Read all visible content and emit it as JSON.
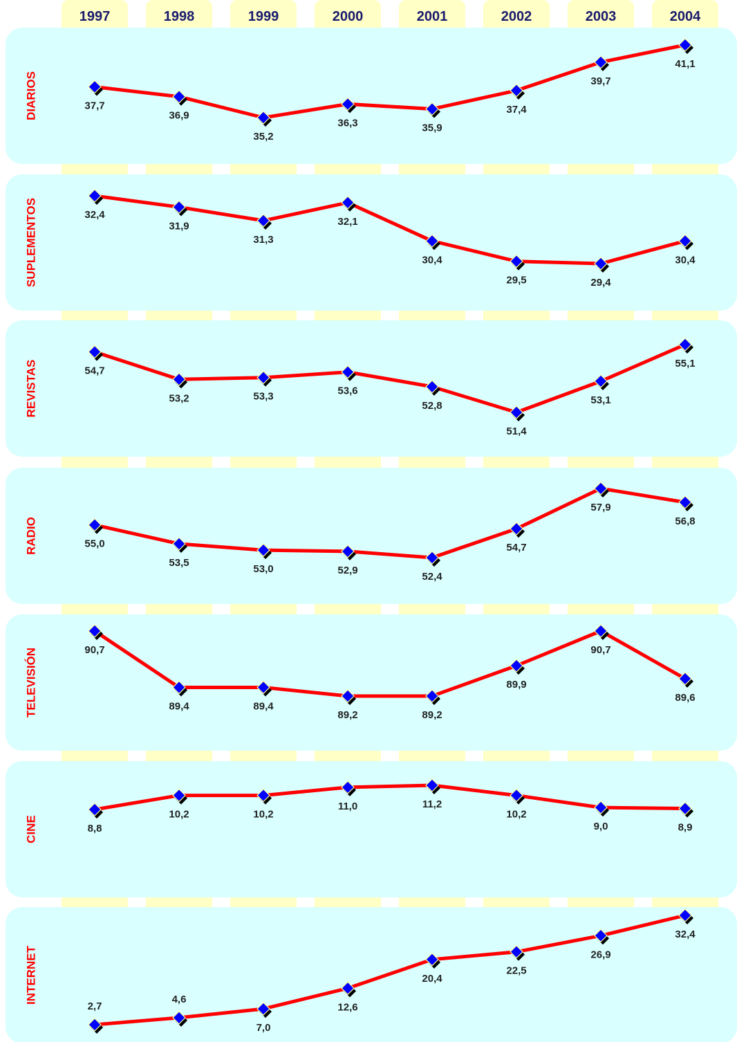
{
  "chart_data": {
    "type": "line",
    "years": [
      "1997",
      "1998",
      "1999",
      "2000",
      "2001",
      "2002",
      "2003",
      "2004"
    ],
    "colors": {
      "panel": "#d9ffff",
      "year_band": "#ffffc6",
      "line": "#ff0000",
      "marker": "#0000ff",
      "label": "#ff0000",
      "year_text": "#1a1a6e"
    },
    "panels": [
      {
        "name": "DIARIOS",
        "values": [
          37.7,
          36.9,
          35.2,
          36.3,
          35.9,
          37.4,
          39.7,
          41.1
        ],
        "labels": [
          "37,7",
          "36,9",
          "35,2",
          "36,3",
          "35,9",
          "37,4",
          "39,7",
          "41,1"
        ]
      },
      {
        "name": "SUPLEMENTOS",
        "values": [
          32.4,
          31.9,
          31.3,
          32.1,
          30.4,
          29.5,
          29.4,
          30.4
        ],
        "labels": [
          "32,4",
          "31,9",
          "31,3",
          "32,1",
          "30,4",
          "29,5",
          "29,4",
          "30,4"
        ]
      },
      {
        "name": "REVISTAS",
        "values": [
          54.7,
          53.2,
          53.3,
          53.6,
          52.8,
          51.4,
          53.1,
          55.1
        ],
        "labels": [
          "54,7",
          "53,2",
          "53,3",
          "53,6",
          "52,8",
          "51,4",
          "53,1",
          "55,1"
        ]
      },
      {
        "name": "RADIO",
        "values": [
          55.0,
          53.5,
          53.0,
          52.9,
          52.4,
          54.7,
          57.9,
          56.8
        ],
        "labels": [
          "55,0",
          "53,5",
          "53,0",
          "52,9",
          "52,4",
          "54,7",
          "57,9",
          "56,8"
        ]
      },
      {
        "name": "TELEVISIÓN",
        "values": [
          90.7,
          89.4,
          89.4,
          89.2,
          89.2,
          89.9,
          90.7,
          89.6
        ],
        "labels": [
          "90,7",
          "89,4",
          "89,4",
          "89,2",
          "89,2",
          "89,9",
          "90,7",
          "89,6"
        ]
      },
      {
        "name": "CINE",
        "values": [
          8.8,
          10.2,
          10.2,
          11.0,
          11.2,
          10.2,
          9.0,
          8.9
        ],
        "labels": [
          "8,8",
          "10,2",
          "10,2",
          "11,0",
          "11,2",
          "10,2",
          "9,0",
          "8,9"
        ]
      },
      {
        "name": "INTERNET",
        "values": [
          2.7,
          4.6,
          7.0,
          12.6,
          20.4,
          22.5,
          26.9,
          32.4
        ],
        "labels": [
          "2,7",
          "4,6",
          "7,0",
          "12,6",
          "20,4",
          "22,5",
          "26,9",
          "32,4"
        ]
      }
    ]
  }
}
